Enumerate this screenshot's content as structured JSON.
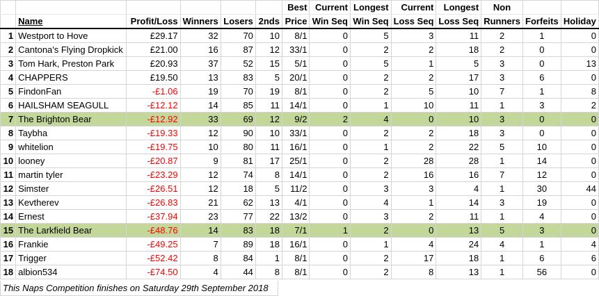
{
  "headers_row1": {
    "best": "Best",
    "current_win": "Current",
    "longest_win": "Longest",
    "current_loss": "Current",
    "longest_loss": "Longest",
    "non": "Non"
  },
  "headers_row2": {
    "name": "Name",
    "profit_loss": "Profit/Loss",
    "winners": "Winners",
    "losers": "Losers",
    "seconds": "2nds",
    "price": "Price",
    "current_win": "Win Seq",
    "longest_win": "Win Seq",
    "current_loss": "Loss Seq",
    "longest_loss": "Loss Seq",
    "runners": "Runners",
    "forfeits": "Forfeits",
    "holiday": "Holiday"
  },
  "colors": {
    "highlight": "#c4d79b",
    "negative": "#ff0000"
  },
  "rows": [
    {
      "idx": "1",
      "name": "Westport to Hove",
      "pl": "£29.17",
      "neg": false,
      "winners": "32",
      "losers": "70",
      "seconds": "10",
      "price": "8/1",
      "cws": "0",
      "lws": "5",
      "cls": "3",
      "lls": "11",
      "nr": "2",
      "forfeits": "1",
      "holiday": "0",
      "hl": false
    },
    {
      "idx": "2",
      "name": "Cantona's Flying Dropkick",
      "pl": "£21.00",
      "neg": false,
      "winners": "16",
      "losers": "87",
      "seconds": "12",
      "price": "33/1",
      "cws": "0",
      "lws": "2",
      "cls": "2",
      "lls": "18",
      "nr": "2",
      "forfeits": "0",
      "holiday": "0",
      "hl": false
    },
    {
      "idx": "3",
      "name": "Tom Hark, Preston Park",
      "pl": "£20.93",
      "neg": false,
      "winners": "37",
      "losers": "52",
      "seconds": "15",
      "price": "5/1",
      "cws": "0",
      "lws": "5",
      "cls": "1",
      "lls": "5",
      "nr": "3",
      "forfeits": "0",
      "holiday": "13",
      "hl": false
    },
    {
      "idx": "4",
      "name": "CHAPPERS",
      "pl": "£19.50",
      "neg": false,
      "winners": "13",
      "losers": "83",
      "seconds": "5",
      "price": "20/1",
      "cws": "0",
      "lws": "2",
      "cls": "2",
      "lls": "17",
      "nr": "3",
      "forfeits": "6",
      "holiday": "0",
      "hl": false
    },
    {
      "idx": "5",
      "name": "FindonFan",
      "pl": "-£1.06",
      "neg": true,
      "winners": "19",
      "losers": "70",
      "seconds": "19",
      "price": "8/1",
      "cws": "0",
      "lws": "2",
      "cls": "5",
      "lls": "10",
      "nr": "7",
      "forfeits": "1",
      "holiday": "8",
      "hl": false
    },
    {
      "idx": "6",
      "name": "HAILSHAM SEAGULL",
      "pl": "-£12.12",
      "neg": true,
      "winners": "14",
      "losers": "85",
      "seconds": "11",
      "price": "14/1",
      "cws": "0",
      "lws": "1",
      "cls": "10",
      "lls": "11",
      "nr": "1",
      "forfeits": "3",
      "holiday": "2",
      "hl": false
    },
    {
      "idx": "7",
      "name": "The Brighton Bear",
      "pl": "-£12.92",
      "neg": true,
      "winners": "33",
      "losers": "69",
      "seconds": "12",
      "price": "9/2",
      "cws": "2",
      "lws": "4",
      "cls": "0",
      "lls": "10",
      "nr": "3",
      "forfeits": "0",
      "holiday": "0",
      "hl": true
    },
    {
      "idx": "8",
      "name": "Taybha",
      "pl": "-£19.33",
      "neg": true,
      "winners": "12",
      "losers": "90",
      "seconds": "10",
      "price": "33/1",
      "cws": "0",
      "lws": "2",
      "cls": "2",
      "lls": "18",
      "nr": "3",
      "forfeits": "0",
      "holiday": "0",
      "hl": false
    },
    {
      "idx": "9",
      "name": "whitelion",
      "pl": "-£19.75",
      "neg": true,
      "winners": "10",
      "losers": "80",
      "seconds": "11",
      "price": "16/1",
      "cws": "0",
      "lws": "1",
      "cls": "2",
      "lls": "22",
      "nr": "5",
      "forfeits": "10",
      "holiday": "0",
      "hl": false
    },
    {
      "idx": "10",
      "name": "looney",
      "pl": "-£20.87",
      "neg": true,
      "winners": "9",
      "losers": "81",
      "seconds": "17",
      "price": "25/1",
      "cws": "0",
      "lws": "2",
      "cls": "28",
      "lls": "28",
      "nr": "1",
      "forfeits": "14",
      "holiday": "0",
      "hl": false
    },
    {
      "idx": "11",
      "name": "martin tyler",
      "pl": "-£23.29",
      "neg": true,
      "winners": "12",
      "losers": "74",
      "seconds": "8",
      "price": "14/1",
      "cws": "0",
      "lws": "2",
      "cls": "16",
      "lls": "16",
      "nr": "7",
      "forfeits": "12",
      "holiday": "0",
      "hl": false
    },
    {
      "idx": "12",
      "name": "Simster",
      "pl": "-£26.51",
      "neg": true,
      "winners": "12",
      "losers": "18",
      "seconds": "5",
      "price": "11/2",
      "cws": "0",
      "lws": "3",
      "cls": "3",
      "lls": "4",
      "nr": "1",
      "forfeits": "30",
      "holiday": "44",
      "hl": false
    },
    {
      "idx": "13",
      "name": "Kevtherev",
      "pl": "-£26.83",
      "neg": true,
      "winners": "21",
      "losers": "62",
      "seconds": "13",
      "price": "4/1",
      "cws": "0",
      "lws": "4",
      "cls": "1",
      "lls": "14",
      "nr": "3",
      "forfeits": "19",
      "holiday": "0",
      "hl": false
    },
    {
      "idx": "14",
      "name": "Ernest",
      "pl": "-£37.94",
      "neg": true,
      "winners": "23",
      "losers": "77",
      "seconds": "22",
      "price": "13/2",
      "cws": "0",
      "lws": "3",
      "cls": "2",
      "lls": "11",
      "nr": "1",
      "forfeits": "4",
      "holiday": "0",
      "hl": false
    },
    {
      "idx": "15",
      "name": "The Larkfield Bear",
      "pl": "-£48.76",
      "neg": true,
      "winners": "14",
      "losers": "83",
      "seconds": "18",
      "price": "7/1",
      "cws": "1",
      "lws": "2",
      "cls": "0",
      "lls": "13",
      "nr": "5",
      "forfeits": "3",
      "holiday": "0",
      "hl": true
    },
    {
      "idx": "16",
      "name": "Frankie",
      "pl": "-£49.25",
      "neg": true,
      "winners": "7",
      "losers": "89",
      "seconds": "18",
      "price": "16/1",
      "cws": "0",
      "lws": "1",
      "cls": "4",
      "lls": "24",
      "nr": "4",
      "forfeits": "1",
      "holiday": "4",
      "hl": false
    },
    {
      "idx": "17",
      "name": "Trigger",
      "pl": "-£52.42",
      "neg": true,
      "winners": "8",
      "losers": "84",
      "seconds": "1",
      "price": "8/1",
      "cws": "0",
      "lws": "2",
      "cls": "17",
      "lls": "18",
      "nr": "1",
      "forfeits": "6",
      "holiday": "6",
      "hl": false
    },
    {
      "idx": "18",
      "name": "albion534",
      "pl": "-£74.50",
      "neg": true,
      "winners": "4",
      "losers": "44",
      "seconds": "8",
      "price": "8/1",
      "cws": "0",
      "lws": "2",
      "cls": "8",
      "lls": "13",
      "nr": "1",
      "forfeits": "56",
      "holiday": "0",
      "hl": false
    }
  ],
  "footer": "This Naps Competition finishes on Saturday 29th September 2018"
}
